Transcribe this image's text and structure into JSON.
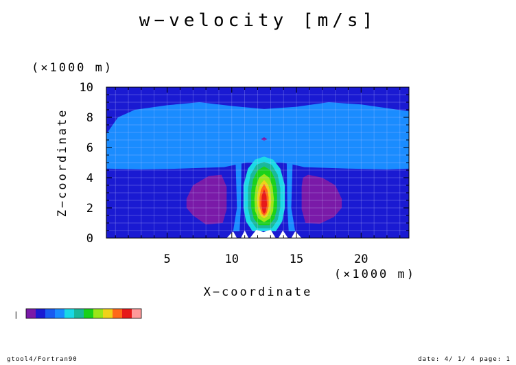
{
  "header": {
    "title": "w−velocity [m/s]"
  },
  "chart_data": {
    "type": "heatmap",
    "title": "w−velocity [m/s]",
    "xlabel": "X−coordinate",
    "ylabel": "Z−coordinate",
    "x_unit": "(×1000 m)",
    "y_unit": "(×1000 m)",
    "xlim": [
      0.3,
      23.7
    ],
    "ylim": [
      0,
      10
    ],
    "xticks": [
      5,
      10,
      15,
      20
    ],
    "yticks": [
      0,
      2,
      4,
      6,
      8,
      10
    ],
    "grid": true,
    "background_color": "#1a1ad2",
    "contour_levels": [
      {
        "name": "upper-band",
        "color": "#1a8cff",
        "outline": [
          [
            0.3,
            4.6
          ],
          [
            3,
            4.55
          ],
          [
            6,
            4.6
          ],
          [
            9.4,
            4.7
          ],
          [
            10.5,
            4.9
          ],
          [
            11.2,
            5.0
          ],
          [
            13.8,
            5.0
          ],
          [
            14.6,
            4.9
          ],
          [
            15.6,
            4.7
          ],
          [
            19,
            4.6
          ],
          [
            22,
            4.55
          ],
          [
            23.7,
            4.6
          ],
          [
            23.7,
            8.4
          ],
          [
            20,
            8.85
          ],
          [
            17.5,
            9.0
          ],
          [
            15,
            8.7
          ],
          [
            12.5,
            8.55
          ],
          [
            10,
            8.75
          ],
          [
            7.5,
            9.0
          ],
          [
            5,
            8.8
          ],
          [
            2.5,
            8.5
          ],
          [
            1.2,
            8.0
          ],
          [
            0.3,
            6.9
          ]
        ]
      },
      {
        "name": "stem-left",
        "color": "#1a8cff",
        "outline": [
          [
            10.3,
            4.9
          ],
          [
            10.75,
            4.95
          ],
          [
            10.7,
            2.0
          ],
          [
            10.6,
            0.45
          ],
          [
            10.1,
            0.45
          ],
          [
            10.4,
            2.0
          ]
        ]
      },
      {
        "name": "stem-right",
        "color": "#1a8cff",
        "outline": [
          [
            14.25,
            4.95
          ],
          [
            14.7,
            4.9
          ],
          [
            14.6,
            2.0
          ],
          [
            14.9,
            0.45
          ],
          [
            14.4,
            0.45
          ],
          [
            14.3,
            2.0
          ]
        ]
      },
      {
        "name": "sink-left",
        "color": "#7a1aa8",
        "outline": [
          [
            6.5,
            2.6
          ],
          [
            7.0,
            3.5
          ],
          [
            8.2,
            4.1
          ],
          [
            9.2,
            4.2
          ],
          [
            9.6,
            3.4
          ],
          [
            9.6,
            1.9
          ],
          [
            9.3,
            1.0
          ],
          [
            8.0,
            0.9
          ],
          [
            7.0,
            1.5
          ],
          [
            6.5,
            2.0
          ]
        ]
      },
      {
        "name": "sink-right",
        "color": "#7a1aa8",
        "outline": [
          [
            15.4,
            3.4
          ],
          [
            15.5,
            4.0
          ],
          [
            15.9,
            4.2
          ],
          [
            17.0,
            4.0
          ],
          [
            18.0,
            3.5
          ],
          [
            18.5,
            2.6
          ],
          [
            18.5,
            2.0
          ],
          [
            17.9,
            1.4
          ],
          [
            16.8,
            0.95
          ],
          [
            15.7,
            1.0
          ],
          [
            15.4,
            1.9
          ]
        ]
      },
      {
        "name": "core-cyan",
        "color": "#1ad9e6",
        "outline": [
          [
            12.5,
            5.4
          ],
          [
            13.2,
            5.2
          ],
          [
            13.75,
            4.6
          ],
          [
            14.1,
            3.5
          ],
          [
            14.1,
            2.0
          ],
          [
            13.9,
            1.1
          ],
          [
            13.4,
            0.45
          ],
          [
            11.6,
            0.45
          ],
          [
            11.1,
            1.1
          ],
          [
            10.9,
            2.0
          ],
          [
            10.9,
            3.5
          ],
          [
            11.25,
            4.6
          ],
          [
            11.8,
            5.2
          ]
        ]
      },
      {
        "name": "core-teal",
        "color": "#1ab89a",
        "outline": [
          [
            12.5,
            5.05
          ],
          [
            13.1,
            4.85
          ],
          [
            13.55,
            4.2
          ],
          [
            13.75,
            3.3
          ],
          [
            13.75,
            2.0
          ],
          [
            13.55,
            1.2
          ],
          [
            13.1,
            0.65
          ],
          [
            11.9,
            0.65
          ],
          [
            11.45,
            1.2
          ],
          [
            11.25,
            2.0
          ],
          [
            11.25,
            3.3
          ],
          [
            11.45,
            4.2
          ],
          [
            11.9,
            4.85
          ]
        ]
      },
      {
        "name": "core-green",
        "color": "#1ad11a",
        "outline": [
          [
            12.5,
            4.75
          ],
          [
            13.0,
            4.5
          ],
          [
            13.35,
            3.9
          ],
          [
            13.5,
            3.1
          ],
          [
            13.5,
            2.0
          ],
          [
            13.3,
            1.3
          ],
          [
            12.9,
            0.85
          ],
          [
            12.1,
            0.85
          ],
          [
            11.7,
            1.3
          ],
          [
            11.5,
            2.0
          ],
          [
            11.5,
            3.1
          ],
          [
            11.65,
            3.9
          ],
          [
            12.0,
            4.5
          ]
        ]
      },
      {
        "name": "core-lime",
        "color": "#9ae61a",
        "outline": [
          [
            12.5,
            4.25
          ],
          [
            12.9,
            4.0
          ],
          [
            13.15,
            3.4
          ],
          [
            13.25,
            2.6
          ],
          [
            13.2,
            1.8
          ],
          [
            12.95,
            1.3
          ],
          [
            12.5,
            1.05
          ],
          [
            12.05,
            1.3
          ],
          [
            11.8,
            1.8
          ],
          [
            11.75,
            2.6
          ],
          [
            11.85,
            3.4
          ],
          [
            12.1,
            4.0
          ]
        ]
      },
      {
        "name": "core-yellow",
        "color": "#f0d21a",
        "outline": [
          [
            12.5,
            3.85
          ],
          [
            12.8,
            3.55
          ],
          [
            13.0,
            3.0
          ],
          [
            13.05,
            2.4
          ],
          [
            12.95,
            1.85
          ],
          [
            12.75,
            1.45
          ],
          [
            12.5,
            1.3
          ],
          [
            12.25,
            1.45
          ],
          [
            12.05,
            1.85
          ],
          [
            11.95,
            2.4
          ],
          [
            12.0,
            3.0
          ],
          [
            12.2,
            3.55
          ]
        ]
      },
      {
        "name": "core-orange",
        "color": "#ff6a1a",
        "outline": [
          [
            12.5,
            3.6
          ],
          [
            12.75,
            3.2
          ],
          [
            12.85,
            2.7
          ],
          [
            12.85,
            2.1
          ],
          [
            12.7,
            1.65
          ],
          [
            12.5,
            1.45
          ],
          [
            12.3,
            1.65
          ],
          [
            12.15,
            2.1
          ],
          [
            12.15,
            2.7
          ],
          [
            12.25,
            3.2
          ]
        ]
      },
      {
        "name": "core-red",
        "color": "#e61a1a",
        "outline": [
          [
            12.5,
            3.25
          ],
          [
            12.68,
            2.8
          ],
          [
            12.72,
            2.2
          ],
          [
            12.62,
            1.75
          ],
          [
            12.5,
            1.6
          ],
          [
            12.38,
            1.75
          ],
          [
            12.28,
            2.2
          ],
          [
            12.32,
            2.8
          ]
        ]
      },
      {
        "name": "top-dot",
        "color": "#7a1aa8",
        "outline": [
          [
            12.25,
            6.55
          ],
          [
            12.5,
            6.68
          ],
          [
            12.75,
            6.55
          ],
          [
            12.5,
            6.45
          ]
        ]
      }
    ],
    "undefined_regions": [
      [
        [
          9.6,
          0
        ],
        [
          10.1,
          0.45
        ],
        [
          10.4,
          0
        ]
      ],
      [
        [
          10.7,
          0
        ],
        [
          11.0,
          0.5
        ],
        [
          11.3,
          0
        ]
      ],
      [
        [
          11.4,
          0
        ],
        [
          11.9,
          0.55
        ],
        [
          12.45,
          0.4
        ],
        [
          13.0,
          0.55
        ],
        [
          13.4,
          0
        ]
      ],
      [
        [
          13.6,
          0
        ],
        [
          13.95,
          0.5
        ],
        [
          14.35,
          0
        ]
      ],
      [
        [
          14.6,
          0
        ],
        [
          14.9,
          0.45
        ],
        [
          15.4,
          0
        ]
      ]
    ],
    "undefined_color": "#ffffff",
    "colorbar": {
      "start_label": "|",
      "colors": [
        "#7a1aa8",
        "#1a1ad2",
        "#1a5af0",
        "#1a8cff",
        "#1ad9e6",
        "#1ab89a",
        "#1ad11a",
        "#9ae61a",
        "#f0d21a",
        "#ff6a1a",
        "#e61a1a",
        "#ff9a9a"
      ]
    }
  },
  "footer": {
    "left": "gtool4/Fortran90",
    "right": "date: 4/ 1/ 4 page: 1"
  }
}
